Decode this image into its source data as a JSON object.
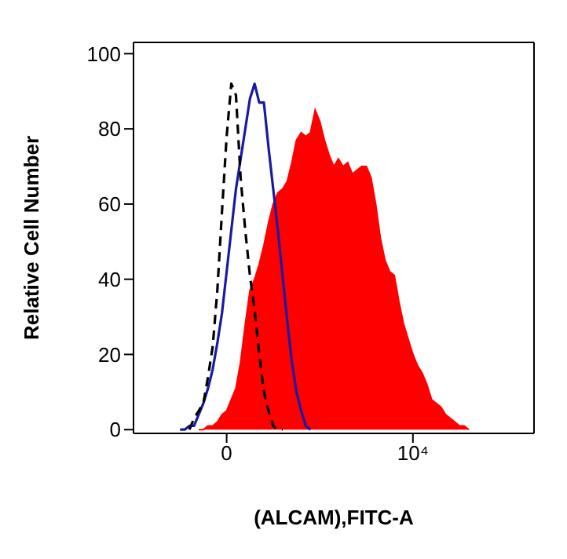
{
  "chart_data": {
    "type": "line",
    "xlabel": "(ALCAM),FITC-A",
    "ylabel": "Relative Cell Number",
    "grid": false,
    "categories": [
      null,
      null,
      null,
      null,
      null,
      null,
      null,
      null,
      null,
      null,
      null,
      null,
      null,
      null,
      null,
      null,
      null,
      null,
      null,
      null,
      "0",
      null,
      null,
      null,
      null,
      null,
      null,
      null,
      null,
      null,
      null,
      null,
      null,
      null,
      null,
      null,
      null,
      null,
      null,
      null,
      null,
      null,
      null,
      null,
      null,
      null,
      null,
      null,
      null,
      null,
      null,
      null,
      null,
      null,
      null,
      null,
      null,
      null,
      null,
      null,
      "10⁴",
      null,
      null,
      null,
      null,
      null,
      null,
      null,
      null,
      null,
      null,
      null,
      null,
      null,
      null,
      null,
      null,
      null,
      null,
      null,
      null,
      null,
      null,
      null,
      null,
      null,
      null
    ],
    "ylim": [
      -1,
      103
    ],
    "yticks": [
      0,
      20,
      40,
      60,
      80,
      100
    ],
    "series": [
      {
        "type": "area",
        "color": "#ff0000",
        "values": [
          null,
          null,
          null,
          null,
          null,
          null,
          null,
          null,
          null,
          null,
          null,
          null,
          null,
          null,
          0,
          0,
          1,
          1,
          2,
          4,
          5,
          8,
          11,
          18,
          28,
          37,
          40,
          44,
          49,
          55,
          60,
          63,
          64,
          66,
          71,
          77,
          79,
          78,
          79,
          85,
          82,
          77,
          73,
          70,
          72,
          70,
          71,
          68,
          69,
          70,
          70,
          67,
          60,
          51,
          45,
          42,
          41,
          34,
          28,
          24,
          20,
          17,
          15,
          12,
          8,
          7,
          6,
          4,
          3,
          2,
          1,
          1,
          0,
          null,
          null,
          null,
          null,
          null,
          null,
          null,
          null,
          null,
          null,
          null,
          null,
          null,
          null
        ]
      },
      {
        "color": "#1a1aa0",
        "line_style": "solid",
        "values": [
          null,
          null,
          null,
          null,
          null,
          null,
          null,
          null,
          null,
          null,
          0,
          0,
          1,
          1,
          4,
          7,
          11,
          16,
          23,
          31,
          42,
          53,
          64,
          72,
          80,
          88,
          92,
          87,
          87,
          75,
          64,
          53,
          41,
          29,
          18,
          10,
          5,
          1,
          0,
          null,
          null,
          null,
          null,
          null,
          null,
          null,
          null,
          null,
          null,
          null,
          null,
          null,
          null,
          null,
          null,
          null,
          null,
          null,
          null,
          null,
          null,
          null,
          null,
          null,
          null,
          null,
          null,
          null,
          null,
          null,
          null,
          null,
          null,
          null,
          null,
          null,
          null,
          null,
          null,
          null,
          null,
          null,
          null,
          null,
          null,
          null,
          null
        ]
      },
      {
        "color": "#000000",
        "line_style": "dashed",
        "values": [
          null,
          null,
          null,
          null,
          null,
          null,
          null,
          null,
          null,
          null,
          null,
          null,
          0,
          3,
          5,
          7,
          14,
          22,
          37,
          58,
          78,
          92,
          89,
          67,
          53,
          41,
          32,
          20,
          10,
          5,
          1,
          0,
          0,
          null,
          null,
          null,
          null,
          null,
          null,
          null,
          null,
          null,
          null,
          null,
          null,
          null,
          null,
          null,
          null,
          null,
          null,
          null,
          null,
          null,
          null,
          null,
          null,
          null,
          null,
          null,
          null,
          null,
          null,
          null,
          null,
          null,
          null,
          null,
          null,
          null,
          null,
          null,
          null,
          null,
          null,
          null,
          null,
          null,
          null,
          null,
          null,
          null,
          null,
          null,
          null,
          null,
          null
        ]
      }
    ]
  }
}
